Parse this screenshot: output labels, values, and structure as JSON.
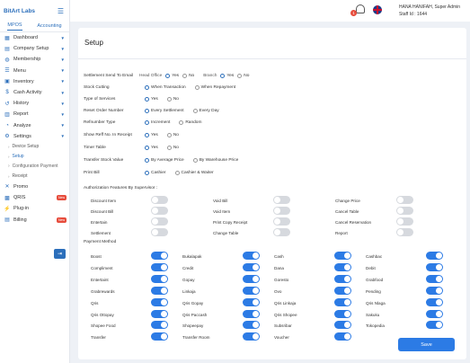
{
  "sidebar": {
    "brand": "BitArt Labs",
    "tabs": [
      "MPOS",
      "Accounting"
    ],
    "items": [
      {
        "label": "Dashboard",
        "icon": "grid-icon",
        "glyph": "▦"
      },
      {
        "label": "Company Setup",
        "icon": "building-icon",
        "glyph": "▤"
      },
      {
        "label": "Membership",
        "icon": "users-icon",
        "glyph": "◍"
      },
      {
        "label": "Menu",
        "icon": "menu-icon",
        "glyph": "☰"
      },
      {
        "label": "Inventory",
        "icon": "box-icon",
        "glyph": "▣"
      },
      {
        "label": "Cash Activity",
        "icon": "cash-icon",
        "glyph": "$"
      },
      {
        "label": "History",
        "icon": "history-icon",
        "glyph": "↺"
      },
      {
        "label": "Report",
        "icon": "report-icon",
        "glyph": "▥"
      },
      {
        "label": "Analyze",
        "icon": "chart-icon",
        "glyph": "◔"
      },
      {
        "label": "Settings",
        "icon": "gear-icon",
        "glyph": "⚙"
      }
    ],
    "sub_items": [
      "Device Setup",
      "Setup",
      "Configuration Payment",
      "Receipt"
    ],
    "bottom_items": [
      {
        "label": "Promo",
        "icon": "promo-icon",
        "glyph": "✕"
      },
      {
        "label": "QRIS",
        "icon": "qr-icon",
        "glyph": "▩",
        "badge": "New"
      },
      {
        "label": "Plug-in",
        "icon": "plug-icon",
        "glyph": "⚡"
      },
      {
        "label": "Billing",
        "icon": "billing-icon",
        "glyph": "▤",
        "badge": "New"
      }
    ]
  },
  "header": {
    "notif_count": "1",
    "user_line1": "HANA HANIFAH, Super Admin",
    "user_line2": "Staff Id : 1644"
  },
  "main": {
    "title": "Setup",
    "settings": [
      {
        "label": "Settlement Send To Email",
        "prefix1": "Head Office",
        "options": [
          "Yes",
          "No"
        ],
        "prefix2": "Branch",
        "options2": [
          "Yes",
          "No"
        ],
        "selected": 0,
        "selected2": 0
      },
      {
        "label": "Stock Cutting",
        "options": [
          "When Transaction",
          "When Repayment"
        ],
        "selected": 0
      },
      {
        "label": "Type of Services",
        "options": [
          "Yes",
          "No"
        ],
        "selected": 0
      },
      {
        "label": "Reset Order Number",
        "options": [
          "Every Settlement",
          "Every Day"
        ],
        "selected": 0
      },
      {
        "label": "Refnumber Type",
        "options": [
          "Increment",
          "Random"
        ],
        "selected": 0
      },
      {
        "label": "Show Reff No. In Receipt",
        "options": [
          "Yes",
          "No"
        ],
        "selected": 0
      },
      {
        "label": "Timer Table",
        "options": [
          "Yes",
          "No"
        ],
        "selected": 0
      },
      {
        "label": "Transfer Stock Value",
        "options": [
          "By Average Price",
          "By Warehouse Price"
        ],
        "selected": 0
      },
      {
        "label": "Print Bill",
        "options": [
          "Cashier",
          "Cashier & Waiter"
        ],
        "selected": 0
      }
    ],
    "auth_title": "Authorization Features By Supervisor :",
    "auth_items": [
      {
        "label": "Discount Item",
        "on": false
      },
      {
        "label": "Void Bill",
        "on": false
      },
      {
        "label": "Change Price",
        "on": false
      },
      {
        "label": "Discount Bill",
        "on": false
      },
      {
        "label": "Void Item",
        "on": false
      },
      {
        "label": "Cancel Table",
        "on": false
      },
      {
        "label": "Entertain",
        "on": false
      },
      {
        "label": "Print Copy Receipt",
        "on": false
      },
      {
        "label": "Cancel Reservation",
        "on": false
      },
      {
        "label": "Settlement",
        "on": false
      },
      {
        "label": "Change Table",
        "on": false
      },
      {
        "label": "Report",
        "on": false
      }
    ],
    "pm_title": "Payment Method",
    "payment_methods": [
      "Boost",
      "Bukalapak",
      "Cash",
      "Cashbac",
      "Compliment",
      "Credit",
      "Dana",
      "Debit",
      "Entertaint",
      "Gopay",
      "Goresto",
      "Grabfood",
      "Grabrewards",
      "Linkaja",
      "Ovo",
      "Pending",
      "Qris",
      "Qris Gopay",
      "Qris Linkaja",
      "Qris Nlaga",
      "Qris Ottopay",
      "Qris Paccash",
      "Qris Shopee",
      "Sakuku",
      "Shopee Food",
      "Shopeepay",
      "Subsribar",
      "Tokopedia",
      "Transfer",
      "Transfer Room",
      "Voucher"
    ],
    "save_label": "Save"
  }
}
